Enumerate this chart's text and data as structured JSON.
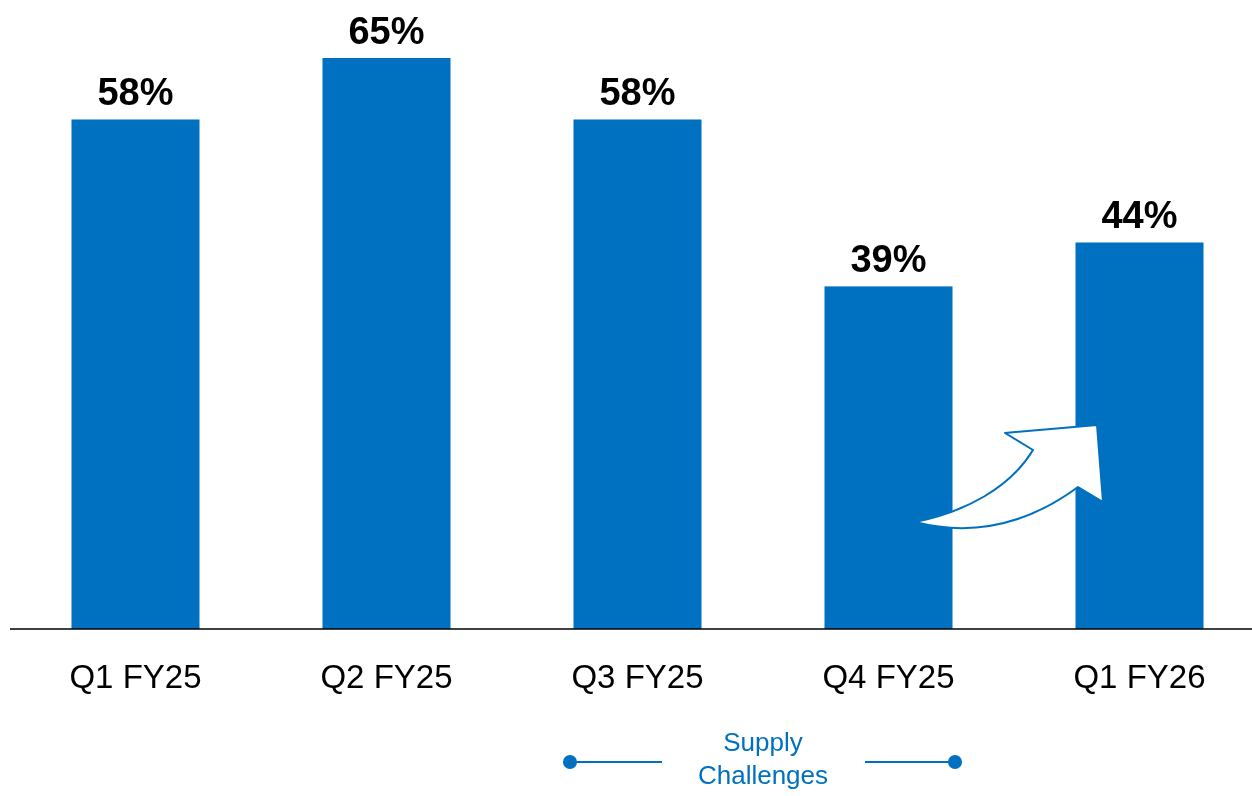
{
  "chart_data": {
    "type": "bar",
    "categories": [
      "Q1 FY25",
      "Q2 FY25",
      "Q3 FY25",
      "Q4 FY25",
      "Q1 FY26"
    ],
    "values": [
      58,
      65,
      58,
      39,
      44
    ],
    "color": "#0070c0",
    "data_labels": true,
    "value_labels": [
      "58%",
      "65%",
      "58%",
      "39%",
      "44%"
    ],
    "annotations": [
      "Supply Challenges"
    ]
  }
}
